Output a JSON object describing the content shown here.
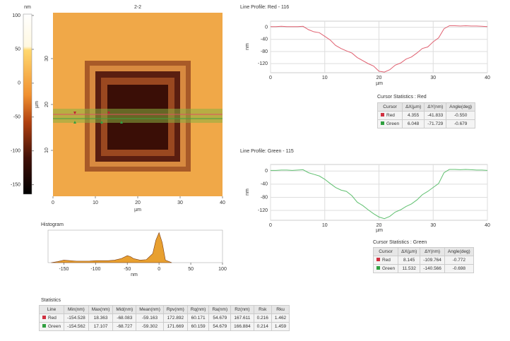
{
  "colorbar": {
    "label": "nm",
    "ylim": [
      -164,
      102
    ],
    "yticks": [
      100,
      50,
      0,
      -50,
      -100,
      -150
    ]
  },
  "image": {
    "title": "2-2",
    "xlabel": "µm",
    "ylabel": "µm",
    "xlim": [
      0,
      40
    ],
    "ylim": [
      0,
      40
    ],
    "xticks": [
      0,
      10,
      20,
      30,
      40
    ],
    "yticks": [
      10,
      20,
      30
    ]
  },
  "red_profile": {
    "title": "Line Profile: Red - 116",
    "xlabel": "µm",
    "ylabel": "nm",
    "color": "#e06070",
    "xlim": [
      0,
      40
    ],
    "ylim": [
      -150,
      20
    ],
    "xticks": [
      0,
      10,
      20,
      30,
      40
    ],
    "yticks": [
      0,
      -40,
      -80,
      -120
    ],
    "x": [
      0,
      1,
      2,
      3,
      4,
      5,
      6,
      7,
      8,
      9,
      10,
      11,
      12,
      13,
      14,
      15,
      16,
      17,
      18,
      19,
      20,
      21,
      22,
      23,
      24,
      25,
      26,
      27,
      28,
      29,
      30,
      31,
      32,
      33,
      34,
      35,
      36,
      37,
      38,
      39,
      40
    ],
    "values": [
      2,
      2,
      3,
      2,
      2,
      2,
      3,
      -8,
      -15,
      -18,
      -30,
      -42,
      -60,
      -70,
      -78,
      -85,
      -100,
      -110,
      -120,
      -128,
      -145,
      -148,
      -140,
      -125,
      -118,
      -105,
      -98,
      -85,
      -70,
      -65,
      -48,
      -35,
      -5,
      5,
      5,
      4,
      5,
      4,
      4,
      3,
      2
    ]
  },
  "red_cursor": {
    "title": "Cursor Statistics : Red",
    "headers": [
      "Cursor",
      "ΔX(µm)",
      "ΔY(nm)",
      "Angle(deg)"
    ],
    "rows": [
      [
        "Red",
        "4.355",
        "-41.833",
        "-0.550"
      ],
      [
        "Green",
        "6.048",
        "-71.729",
        "-0.679"
      ]
    ]
  },
  "green_profile": {
    "title": "Line Profile: Green - 115",
    "xlabel": "µm",
    "ylabel": "nm",
    "color": "#60c070",
    "xlim": [
      0,
      40
    ],
    "ylim": [
      -150,
      20
    ],
    "xticks": [
      0,
      10,
      20,
      30,
      40
    ],
    "yticks": [
      0,
      -40,
      -80,
      -120
    ],
    "x": [
      0,
      1,
      2,
      3,
      4,
      5,
      6,
      7,
      8,
      9,
      10,
      11,
      12,
      13,
      14,
      15,
      16,
      17,
      18,
      19,
      20,
      21,
      22,
      23,
      24,
      25,
      26,
      27,
      28,
      29,
      30,
      31,
      32,
      33,
      34,
      35,
      36,
      37,
      38,
      39,
      40
    ],
    "values": [
      2,
      2,
      3,
      3,
      2,
      3,
      4,
      -5,
      -10,
      -15,
      -25,
      -38,
      -50,
      -58,
      -62,
      -75,
      -95,
      -105,
      -118,
      -130,
      -140,
      -145,
      -138,
      -125,
      -118,
      -108,
      -100,
      -88,
      -72,
      -62,
      -50,
      -38,
      -5,
      5,
      5,
      4,
      5,
      4,
      3,
      3,
      2
    ]
  },
  "green_cursor": {
    "title": "Cursor Statistics : Green",
    "headers": [
      "Cursor",
      "ΔX(µm)",
      "ΔY(nm)",
      "Angle(deg)"
    ],
    "rows": [
      [
        "Red",
        "8.145",
        "-109.764",
        "-0.772"
      ],
      [
        "Green",
        "11.532",
        "-140.566",
        "-0.698"
      ]
    ]
  },
  "histogram": {
    "title": "Histogram",
    "xlabel": "nm",
    "color": "#e8a030",
    "xlim": [
      -175,
      100
    ],
    "ylim": [
      0,
      65
    ],
    "xticks": [
      -150,
      -100,
      -50,
      0,
      50,
      100
    ],
    "x": [
      -170,
      -160,
      -150,
      -140,
      -130,
      -120,
      -110,
      -100,
      -90,
      -80,
      -70,
      -60,
      -50,
      -45,
      -40,
      -30,
      -20,
      -10,
      -5,
      0,
      5,
      10,
      20
    ],
    "counts": [
      0,
      2,
      5,
      4,
      3,
      3,
      3,
      4,
      4,
      4,
      5,
      8,
      14,
      12,
      8,
      5,
      6,
      18,
      45,
      60,
      40,
      5,
      0
    ]
  },
  "statistics": {
    "title": "Statistics",
    "headers": [
      "Line",
      "Min(nm)",
      "Max(nm)",
      "Mid(nm)",
      "Mean(nm)",
      "Rpv(nm)",
      "Rq(nm)",
      "Ra(nm)",
      "Rz(nm)",
      "Rsk",
      "Rku"
    ],
    "rows": [
      [
        "Red",
        "-154.528",
        "18.363",
        "-68.083",
        "-59.163",
        "172.892",
        "60.171",
        "54.679",
        "167.611",
        "0.216",
        "1.462"
      ],
      [
        "Green",
        "-154.562",
        "17.107",
        "-68.727",
        "-59.302",
        "171.669",
        "60.159",
        "54.679",
        "166.884",
        "0.214",
        "1.459"
      ]
    ]
  }
}
